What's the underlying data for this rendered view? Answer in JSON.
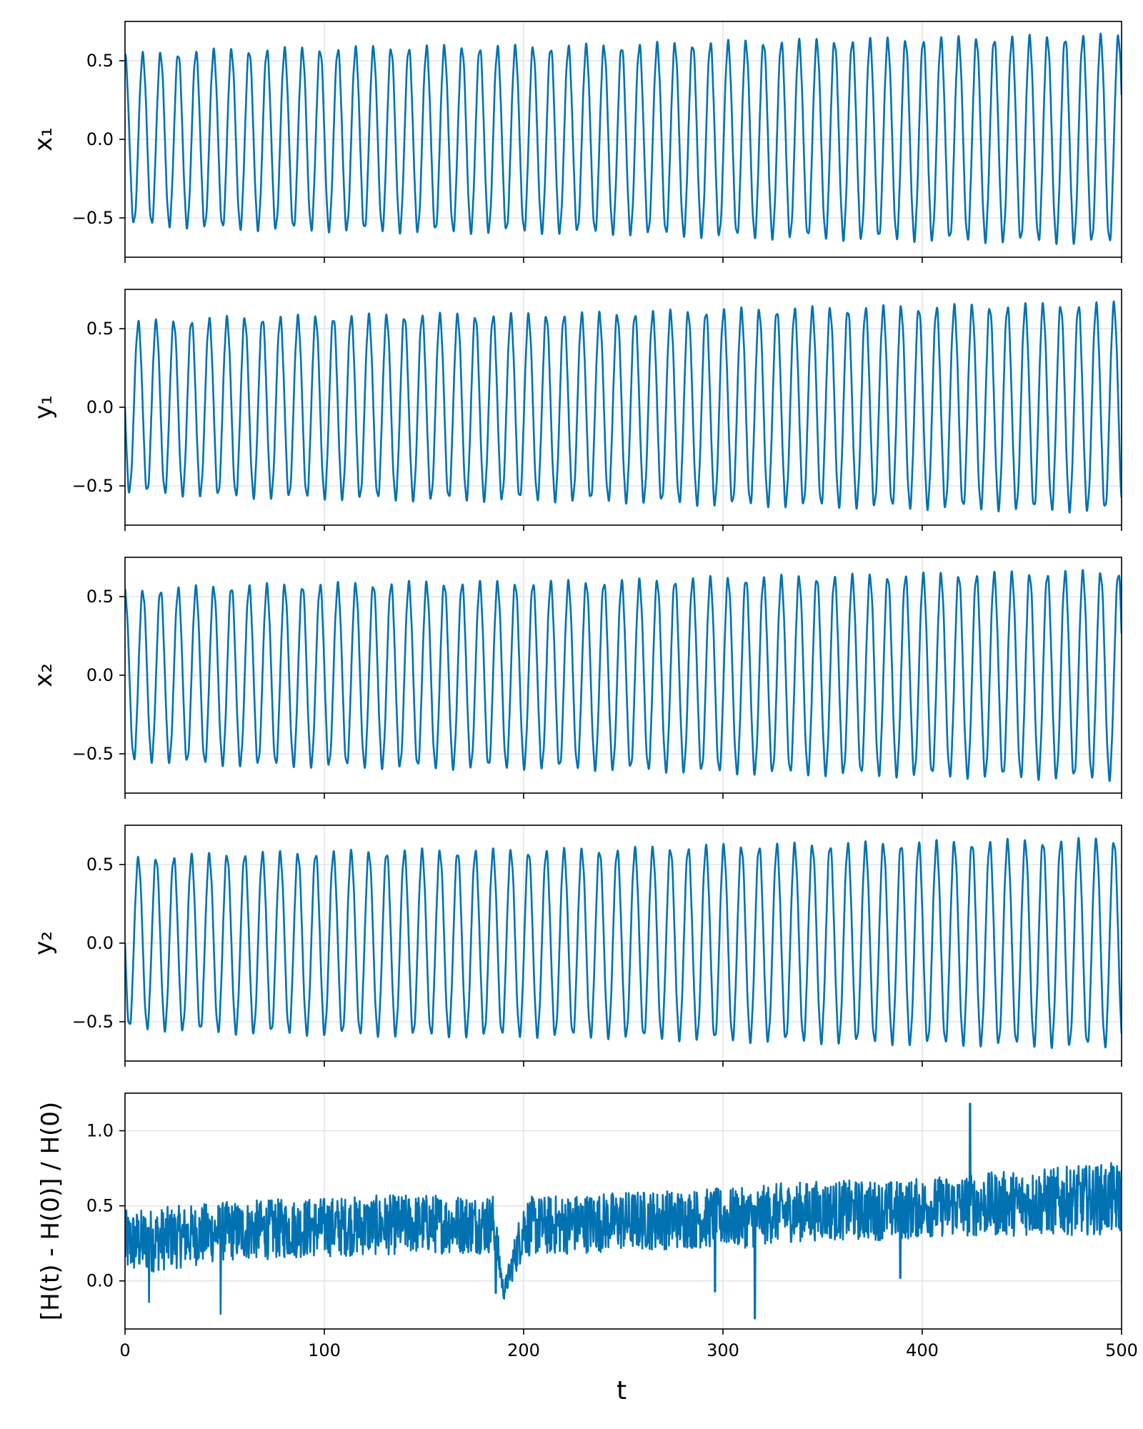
{
  "figure": {
    "xlabel": "t",
    "line_color": "#0072b2"
  },
  "chart_data": [
    {
      "type": "line",
      "ylabel": "x₁",
      "xlim": [
        0,
        500
      ],
      "ylim": [
        -0.75,
        0.75
      ],
      "xticks": [
        0,
        100,
        200,
        300,
        400,
        500
      ],
      "yticks": [
        -0.5,
        0.0,
        0.5
      ],
      "ytick_labels": [
        "−0.5",
        "0.0",
        "0.5"
      ],
      "grid": true,
      "series": [
        {
          "phase": "cos",
          "period": 8.9,
          "x": [
            0,
            50,
            100,
            150,
            200,
            250,
            300,
            350,
            400,
            450,
            500
          ],
          "amplitude": [
            0.53,
            0.56,
            0.57,
            0.58,
            0.58,
            0.59,
            0.61,
            0.62,
            0.63,
            0.64,
            0.65
          ]
        }
      ]
    },
    {
      "type": "line",
      "ylabel": "y₁",
      "xlim": [
        0,
        500
      ],
      "ylim": [
        -0.75,
        0.75
      ],
      "xticks": [
        0,
        100,
        200,
        300,
        400,
        500
      ],
      "yticks": [
        -0.5,
        0.0,
        0.5
      ],
      "ytick_labels": [
        "−0.5",
        "0.0",
        "0.5"
      ],
      "grid": true,
      "series": [
        {
          "phase": "sin",
          "period": 8.9,
          "x": [
            0,
            50,
            100,
            150,
            200,
            250,
            300,
            350,
            400,
            450,
            500
          ],
          "amplitude": [
            0.53,
            0.56,
            0.57,
            0.58,
            0.58,
            0.59,
            0.61,
            0.62,
            0.63,
            0.64,
            0.65
          ]
        }
      ]
    },
    {
      "type": "line",
      "ylabel": "x₂",
      "xlim": [
        0,
        500
      ],
      "ylim": [
        -0.75,
        0.75
      ],
      "xticks": [
        0,
        100,
        200,
        300,
        400,
        500
      ],
      "yticks": [
        -0.5,
        0.0,
        0.5
      ],
      "ytick_labels": [
        "−0.5",
        "0.0",
        "0.5"
      ],
      "grid": true,
      "series": [
        {
          "phase": "cos",
          "period": 8.9,
          "x": [
            0,
            50,
            100,
            150,
            200,
            250,
            300,
            350,
            400,
            450,
            500
          ],
          "amplitude": [
            0.53,
            0.56,
            0.57,
            0.58,
            0.58,
            0.59,
            0.61,
            0.62,
            0.63,
            0.64,
            0.65
          ]
        }
      ]
    },
    {
      "type": "line",
      "ylabel": "y₂",
      "xlim": [
        0,
        500
      ],
      "ylim": [
        -0.75,
        0.75
      ],
      "xticks": [
        0,
        100,
        200,
        300,
        400,
        500
      ],
      "yticks": [
        -0.5,
        0.0,
        0.5
      ],
      "ytick_labels": [
        "−0.5",
        "0.0",
        "0.5"
      ],
      "grid": true,
      "series": [
        {
          "phase": "sin",
          "period": 8.9,
          "x": [
            0,
            50,
            100,
            150,
            200,
            250,
            300,
            350,
            400,
            450,
            500
          ],
          "amplitude": [
            0.53,
            0.56,
            0.57,
            0.58,
            0.58,
            0.59,
            0.61,
            0.62,
            0.63,
            0.64,
            0.65
          ]
        }
      ]
    },
    {
      "type": "line",
      "ylabel": "[H(t) - H(0)] / H(0)",
      "xlabel": "t",
      "xlim": [
        0,
        500
      ],
      "ylim": [
        -0.32,
        1.25
      ],
      "xticks": [
        0,
        100,
        200,
        300,
        400,
        500
      ],
      "xtick_labels": [
        "0",
        "100",
        "200",
        "300",
        "400",
        "500"
      ],
      "yticks": [
        0.0,
        0.5,
        1.0
      ],
      "ytick_labels": [
        "0.0",
        "0.5",
        "1.0"
      ],
      "grid": true,
      "series": [
        {
          "x": [
            0,
            50,
            100,
            150,
            185,
            190,
            200,
            250,
            300,
            315,
            325,
            350,
            390,
            400,
            450,
            500
          ],
          "mean": [
            0.25,
            0.33,
            0.36,
            0.38,
            0.38,
            -0.08,
            0.36,
            0.4,
            0.42,
            0.42,
            0.45,
            0.47,
            0.47,
            0.49,
            0.52,
            0.55
          ],
          "spread": [
            0.22,
            0.2,
            0.2,
            0.2,
            0.2,
            0.05,
            0.2,
            0.2,
            0.2,
            0.2,
            0.2,
            0.2,
            0.2,
            0.2,
            0.22,
            0.24
          ],
          "outliers": [
            {
              "x": 12,
              "y": -0.14
            },
            {
              "x": 48,
              "y": -0.22
            },
            {
              "x": 186,
              "y": -0.08
            },
            {
              "x": 296,
              "y": -0.07
            },
            {
              "x": 316,
              "y": -0.25
            },
            {
              "x": 389,
              "y": 0.02
            },
            {
              "x": 424,
              "y": 1.18
            }
          ]
        }
      ]
    }
  ]
}
